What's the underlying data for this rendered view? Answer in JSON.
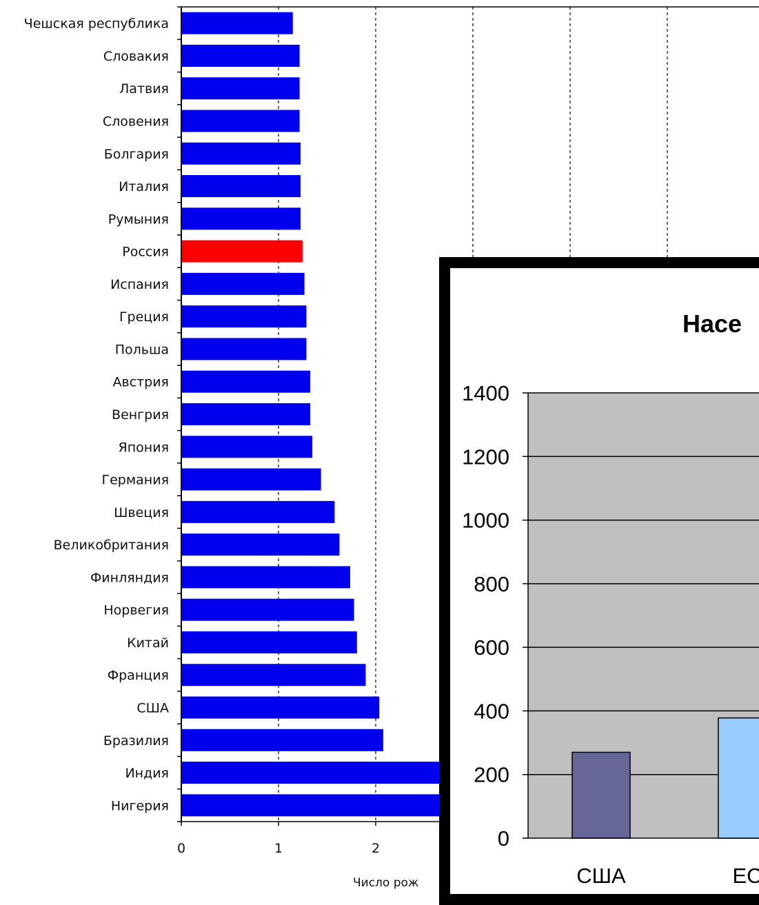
{
  "chart_data": [
    {
      "type": "bar",
      "orientation": "horizontal",
      "categories": [
        "Чешская республика",
        "Словакия",
        "Латвия",
        "Словения",
        "Болгария",
        "Италия",
        "Румыния",
        "Россия",
        "Испания",
        "Греция",
        "Польша",
        "Австрия",
        "Венгрия",
        "Япония",
        "Германия",
        "Швеция",
        "Великобритания",
        "Финляндия",
        "Норвегия",
        "Китай",
        "Франция",
        "США",
        "Бразилия",
        "Индия",
        "Нигерия"
      ],
      "values": [
        1.14,
        1.21,
        1.21,
        1.21,
        1.22,
        1.22,
        1.22,
        1.24,
        1.26,
        1.28,
        1.28,
        1.32,
        1.32,
        1.34,
        1.43,
        1.57,
        1.62,
        1.73,
        1.77,
        1.8,
        1.89,
        2.03,
        2.07,
        3.0,
        5.5
      ],
      "highlight": {
        "category": "Россия",
        "color": "#ff0000"
      },
      "bar_color": "#0000ee",
      "xticks": [
        "0",
        "1",
        "2"
      ],
      "xlabel": "Число рож",
      "xlim": [
        0,
        6
      ],
      "grid": "vertical dashed"
    },
    {
      "type": "bar",
      "title": "Насе",
      "categories": [
        "США",
        "ЕС"
      ],
      "values": [
        270,
        378
      ],
      "colors": [
        "#666699",
        "#99ccff"
      ],
      "ylim": [
        0,
        1400
      ],
      "yticks": [
        "1400",
        "1200",
        "1000",
        "800",
        "600",
        "400",
        "200",
        "0"
      ],
      "plot_bg": "#c0c0c0",
      "grid": "horizontal"
    }
  ]
}
